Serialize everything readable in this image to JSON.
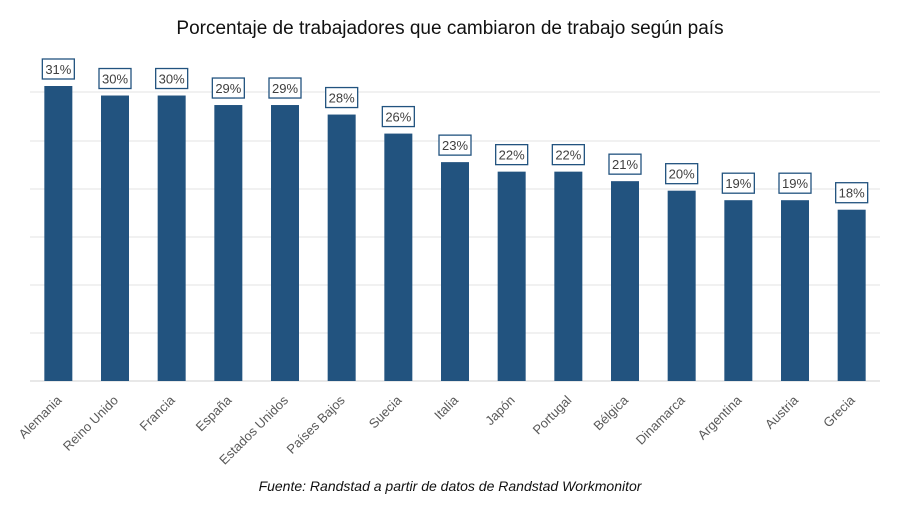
{
  "page": {
    "title": "Porcentaje de trabajadores que cambiaron de trabajo según país",
    "source": "Fuente: Randstad a partir de datos de Randstad Workmonitor"
  },
  "chart_data": {
    "type": "bar",
    "title": "Porcentaje de trabajadores que cambiaron de trabajo según país",
    "categories": [
      "Alemania",
      "Reino Unido",
      "Francia",
      "España",
      "Estados Unidos",
      "Países Bajos",
      "Suecia",
      "Italia",
      "Japón",
      "Portugal",
      "Bélgica",
      "Dinamarca",
      "Argentina",
      "Austria",
      "Grecia"
    ],
    "values": [
      31,
      30,
      30,
      29,
      29,
      28,
      26,
      23,
      22,
      22,
      21,
      20,
      19,
      19,
      18
    ],
    "data_labels": [
      "31%",
      "30%",
      "30%",
      "29%",
      "29%",
      "28%",
      "26%",
      "23%",
      "22%",
      "22%",
      "21%",
      "20%",
      "19%",
      "19%",
      "18%"
    ],
    "xlabel": "",
    "ylabel": "",
    "ylim": [
      0,
      31
    ],
    "grid": true,
    "legend": "none",
    "colors": {
      "bar": "#22537f",
      "label_border": "#22537f",
      "grid": "#e3e3e3",
      "label_text": "#404040",
      "axis_text": "#595959"
    }
  }
}
